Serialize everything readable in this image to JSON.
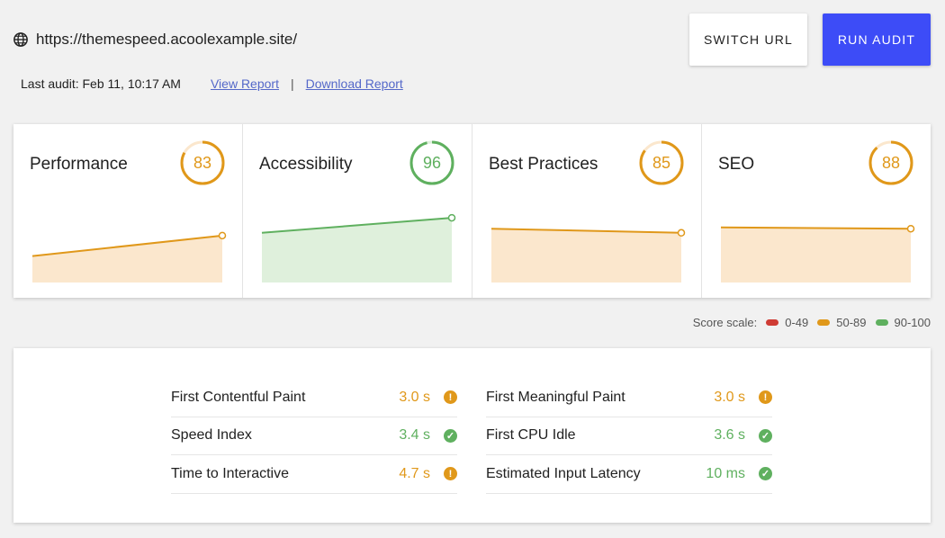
{
  "header": {
    "url": "https://themespeed.acoolexample.site/",
    "last_audit": "Last audit: Feb 11, 10:17 AM",
    "view_report": "View Report",
    "separator": "|",
    "download_report": "Download Report",
    "switch_url_label": "SWITCH URL",
    "run_audit_label": "RUN AUDIT"
  },
  "colors": {
    "accent": "#3d4cf7",
    "average": "#e0981a",
    "pass": "#5fb05f",
    "fail": "#cf3c34",
    "average_fill": "#fbe7cd",
    "pass_fill": "#dff0dc"
  },
  "scores": [
    {
      "title": "Performance",
      "score": "83",
      "status": "average",
      "trend": [
        68,
        83
      ]
    },
    {
      "title": "Accessibility",
      "score": "96",
      "status": "pass",
      "trend": [
        85,
        96
      ]
    },
    {
      "title": "Best Practices",
      "score": "85",
      "status": "average",
      "trend": [
        88,
        85
      ]
    },
    {
      "title": "SEO",
      "score": "88",
      "status": "average",
      "trend": [
        89,
        88
      ]
    }
  ],
  "scale": {
    "label": "Score scale:",
    "ranges": [
      {
        "label": "0-49",
        "status": "fail"
      },
      {
        "label": "50-89",
        "status": "average"
      },
      {
        "label": "90-100",
        "status": "pass"
      }
    ]
  },
  "metrics": {
    "left": [
      {
        "label": "First Contentful Paint",
        "value": "3.0 s",
        "status": "average",
        "icon": "info-icon"
      },
      {
        "label": "Speed Index",
        "value": "3.4 s",
        "status": "pass",
        "icon": "check-icon"
      },
      {
        "label": "Time to Interactive",
        "value": "4.7 s",
        "status": "average",
        "icon": "info-icon"
      }
    ],
    "right": [
      {
        "label": "First Meaningful Paint",
        "value": "3.0 s",
        "status": "average",
        "icon": "info-icon"
      },
      {
        "label": "First CPU Idle",
        "value": "3.6 s",
        "status": "pass",
        "icon": "check-icon"
      },
      {
        "label": "Estimated Input Latency",
        "value": "10 ms",
        "status": "pass",
        "icon": "check-icon"
      }
    ]
  }
}
